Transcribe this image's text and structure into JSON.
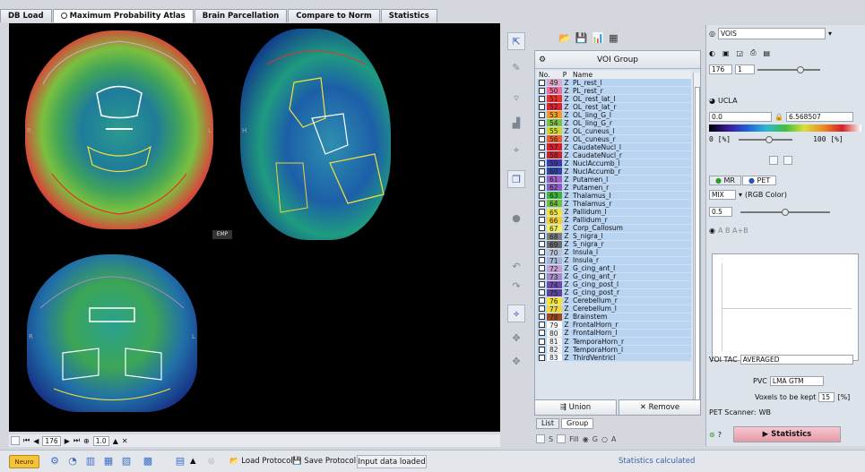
{
  "tabs": [
    {
      "label": "DB Load"
    },
    {
      "label": "Maximum Probability Atlas"
    },
    {
      "label": "Brain Parcellation"
    },
    {
      "label": "Compare to Norm"
    },
    {
      "label": "Statistics"
    }
  ],
  "viewer": {
    "emp_label": "EMP",
    "orient": {
      "r1": "R",
      "l1": "L",
      "h": "H",
      "r2": "R",
      "l2": "L"
    }
  },
  "viewer_bar": {
    "slice": "176",
    "zoom": "1.0"
  },
  "voi_panel": {
    "header": "VOI Group",
    "columns": {
      "no": "No.",
      "p": "P",
      "name": "Name"
    },
    "items": [
      {
        "no": "49",
        "p": "Z",
        "name": "PL_rest_l",
        "color": "#d6a9c6"
      },
      {
        "no": "50",
        "p": "Z",
        "name": "PL_rest_r",
        "color": "#f26b9d"
      },
      {
        "no": "51",
        "p": "Z",
        "name": "OL_rest_lat_l",
        "color": "#e8302b"
      },
      {
        "no": "52",
        "p": "Z",
        "name": "OL_rest_lat_r",
        "color": "#e71d2a"
      },
      {
        "no": "53",
        "p": "Z",
        "name": "OL_ling_G_l",
        "color": "#f39a23"
      },
      {
        "no": "54",
        "p": "Z",
        "name": "OL_ling_G_r",
        "color": "#7fbf3f"
      },
      {
        "no": "55",
        "p": "Z",
        "name": "OL_cuneus_l",
        "color": "#cbd530"
      },
      {
        "no": "56",
        "p": "Z",
        "name": "OL_cuneus_r",
        "color": "#f05a28"
      },
      {
        "no": "57",
        "p": "Z",
        "name": "CaudateNucl_l",
        "color": "#d61f26"
      },
      {
        "no": "58",
        "p": "Z",
        "name": "CaudateNucl_r",
        "color": "#cf2027"
      },
      {
        "no": "59",
        "p": "Z",
        "name": "NuclAccumb_l",
        "color": "#3b3aa7"
      },
      {
        "no": "60",
        "p": "Z",
        "name": "NuclAccumb_r",
        "color": "#3142a8"
      },
      {
        "no": "61",
        "p": "Z",
        "name": "Putamen_l",
        "color": "#9b61c4"
      },
      {
        "no": "62",
        "p": "Z",
        "name": "Putamen_r",
        "color": "#8a5cc0"
      },
      {
        "no": "63",
        "p": "Z",
        "name": "Thalamus_l",
        "color": "#3db53d"
      },
      {
        "no": "64",
        "p": "Z",
        "name": "Thalamus_r",
        "color": "#6fc13a"
      },
      {
        "no": "65",
        "p": "Z",
        "name": "Pallidum_l",
        "color": "#f2e43a"
      },
      {
        "no": "66",
        "p": "Z",
        "name": "Pallidum_r",
        "color": "#f2cf3a"
      },
      {
        "no": "67",
        "p": "Z",
        "name": "Corp_Callosum",
        "color": "#f5ee5b"
      },
      {
        "no": "68",
        "p": "Z",
        "name": "S_nigra_l",
        "color": "#7d7d7d"
      },
      {
        "no": "69",
        "p": "Z",
        "name": "S_nigra_r",
        "color": "#6a6a6a"
      },
      {
        "no": "70",
        "p": "Z",
        "name": "Insula_l",
        "color": "#b7c2d4"
      },
      {
        "no": "71",
        "p": "Z",
        "name": "Insula_r",
        "color": "#a8b6d6"
      },
      {
        "no": "72",
        "p": "Z",
        "name": "G_cing_ant_l",
        "color": "#c2a0cf"
      },
      {
        "no": "73",
        "p": "Z",
        "name": "G_cing_ant_r",
        "color": "#a888c4"
      },
      {
        "no": "74",
        "p": "Z",
        "name": "G_cing_post_l",
        "color": "#6a4aa8"
      },
      {
        "no": "75",
        "p": "Z",
        "name": "G_cing_post_r",
        "color": "#5b3f9c"
      },
      {
        "no": "76",
        "p": "Z",
        "name": "Cerebellum_r",
        "color": "#f5e23a"
      },
      {
        "no": "77",
        "p": "Z",
        "name": "Cerebellum_l",
        "color": "#f2d83a"
      },
      {
        "no": "78",
        "p": "Z",
        "name": "Brainstem",
        "color": "#9c4a22"
      },
      {
        "no": "79",
        "p": "Z",
        "name": "FrontalHorn_r",
        "color": "#ffffff"
      },
      {
        "no": "80",
        "p": "Z",
        "name": "FrontalHorn_l",
        "color": "#f4f4f4"
      },
      {
        "no": "81",
        "p": "Z",
        "name": "TemporaHorn_r",
        "color": "#f7f7f7"
      },
      {
        "no": "82",
        "p": "Z",
        "name": "TemporaHorn_l",
        "color": "#f0f0f0"
      },
      {
        "no": "83",
        "p": "Z",
        "name": "ThirdVentricl",
        "color": "#ffffff"
      }
    ],
    "union_label": "Union",
    "remove_label": "Remove",
    "list_tabs": {
      "list": "List",
      "group": "Group"
    },
    "fill_bar": {
      "s": "S",
      "fill": "Fill",
      "g": "G",
      "a": "A"
    }
  },
  "right_panel": {
    "vois_label": "VOIS",
    "slice_value": "176",
    "slice_step": "1",
    "colortable_name": "UCLA",
    "range_min": "0.0",
    "range_max": "6.568507",
    "pct_min": "0 [%]",
    "pct_max": "100 [%]",
    "tab_mr": "MR",
    "tab_pet": "PET",
    "fusion_mode": "MIX",
    "fusion_desc": "(RGB Color)",
    "fusion_value": "0.5",
    "abc_label": "A  B  A+B",
    "voi_tac_label": "VOI TAC",
    "voi_tac_value": "AVERAGED",
    "pvc_label": "PVC",
    "pvc_value": "LMA GTM",
    "voxels_label": "Voxels to be kept",
    "voxels_value": "15",
    "voxels_unit": "[%]",
    "pet_scanner_label": "PET Scanner:",
    "pet_scanner_value": "WB",
    "statistics_label": "Statistics"
  },
  "bottom_bar": {
    "neuro_label": "Neuro",
    "load_protocol": "Load Protocol",
    "save_protocol": "Save Protocol",
    "input_status": "Input data loaded",
    "statistics_status": "Statistics calculated"
  }
}
